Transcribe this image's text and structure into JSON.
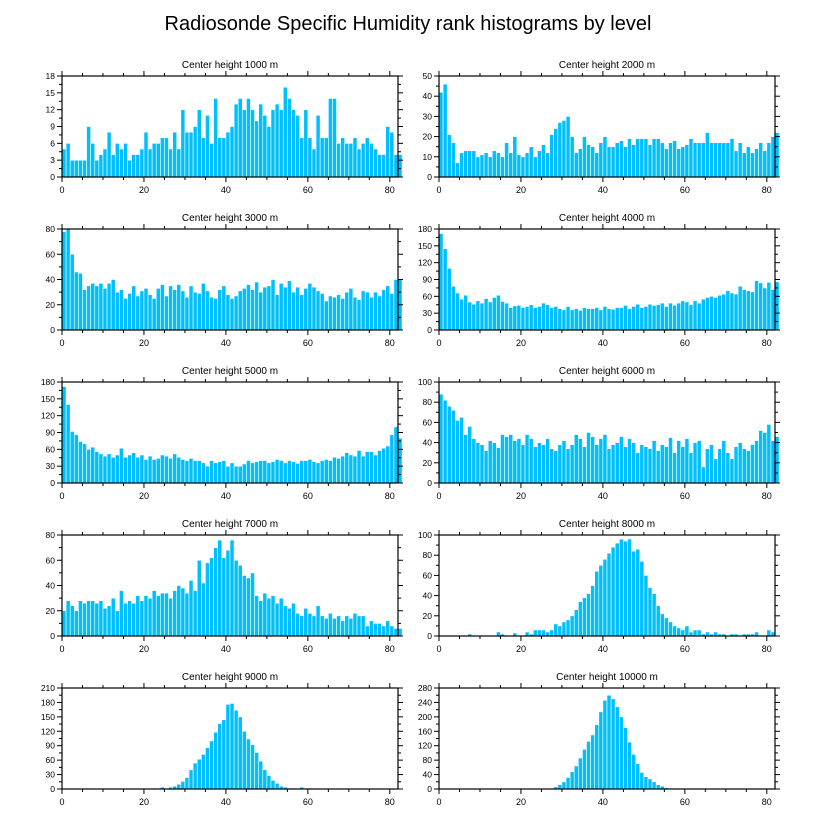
{
  "title": "Radiosonde Specific Humidity rank histograms by level",
  "colors": {
    "bar": "#00BFFF",
    "bar_edge": "#ffffff",
    "axis": "#000000"
  },
  "chart_data": [
    {
      "type": "bar",
      "title": "Center height 1000 m",
      "xlim": [
        0,
        82
      ],
      "ylim": [
        0,
        18
      ],
      "xticks": [
        0,
        20,
        40,
        60,
        80
      ],
      "yticks": [
        0,
        3,
        6,
        9,
        12,
        15,
        18
      ],
      "values": [
        5,
        6,
        3,
        3,
        3,
        3,
        9,
        6,
        3,
        4,
        5,
        8,
        4,
        6,
        5,
        6,
        3,
        4,
        4,
        5,
        8,
        5,
        6,
        6,
        7,
        7,
        5,
        8,
        5,
        12,
        8,
        8,
        9,
        12,
        7,
        11,
        6,
        14,
        7,
        7,
        8,
        9,
        13,
        14,
        12,
        14,
        12,
        10,
        13,
        11,
        9,
        12,
        13,
        12,
        16,
        14,
        12,
        11,
        7,
        12,
        7,
        5,
        11,
        7,
        7,
        14,
        14,
        6,
        7,
        6,
        6,
        7,
        5,
        6,
        7,
        6,
        5,
        4,
        4,
        9,
        8,
        4,
        4
      ]
    },
    {
      "type": "bar",
      "title": "Center height 2000 m",
      "xlim": [
        0,
        82
      ],
      "ylim": [
        0,
        50
      ],
      "xticks": [
        0,
        20,
        40,
        60,
        80
      ],
      "yticks": [
        0,
        10,
        20,
        30,
        40,
        50
      ],
      "values": [
        42,
        46,
        21,
        17,
        7,
        12,
        13,
        13,
        13,
        10,
        11,
        12,
        10,
        13,
        12,
        10,
        17,
        12,
        20,
        11,
        10,
        12,
        15,
        10,
        13,
        16,
        12,
        21,
        24,
        27,
        28,
        30,
        20,
        12,
        14,
        20,
        16,
        15,
        12,
        17,
        20,
        15,
        15,
        17,
        18,
        15,
        19,
        16,
        19,
        19,
        19,
        16,
        19,
        19,
        17,
        14,
        17,
        18,
        14,
        15,
        16,
        19,
        17,
        17,
        17,
        22,
        17,
        17,
        17,
        17,
        17,
        19,
        13,
        17,
        12,
        15,
        12,
        14,
        17,
        13,
        17,
        20,
        22
      ]
    },
    {
      "type": "bar",
      "title": "Center height 3000 m",
      "xlim": [
        0,
        82
      ],
      "ylim": [
        0,
        80
      ],
      "xticks": [
        0,
        20,
        40,
        60,
        80
      ],
      "yticks": [
        0,
        20,
        40,
        60,
        80
      ],
      "values": [
        78,
        80,
        60,
        46,
        45,
        32,
        35,
        37,
        35,
        37,
        33,
        37,
        40,
        30,
        32,
        25,
        29,
        35,
        27,
        31,
        33,
        28,
        25,
        33,
        36,
        27,
        35,
        32,
        36,
        31,
        26,
        35,
        30,
        29,
        37,
        31,
        26,
        25,
        32,
        35,
        28,
        25,
        27,
        31,
        33,
        36,
        32,
        38,
        30,
        34,
        35,
        40,
        28,
        37,
        34,
        39,
        30,
        34,
        28,
        33,
        37,
        34,
        31,
        29,
        23,
        27,
        26,
        28,
        25,
        30,
        33,
        26,
        24,
        31,
        30,
        26,
        30,
        27,
        32,
        35,
        29,
        40,
        40
      ]
    },
    {
      "type": "bar",
      "title": "Center height 4000 m",
      "xlim": [
        0,
        82
      ],
      "ylim": [
        0,
        180
      ],
      "xticks": [
        0,
        20,
        40,
        60,
        80
      ],
      "yticks": [
        0,
        30,
        60,
        90,
        120,
        150,
        180
      ],
      "values": [
        172,
        145,
        110,
        78,
        66,
        55,
        62,
        50,
        46,
        52,
        48,
        56,
        50,
        58,
        62,
        51,
        48,
        40,
        43,
        44,
        40,
        42,
        45,
        40,
        42,
        48,
        45,
        40,
        42,
        38,
        36,
        42,
        36,
        38,
        35,
        40,
        38,
        38,
        40,
        36,
        42,
        38,
        37,
        40,
        40,
        44,
        38,
        42,
        46,
        40,
        42,
        46,
        44,
        45,
        48,
        42,
        48,
        44,
        48,
        52,
        50,
        45,
        52,
        48,
        55,
        58,
        60,
        58,
        62,
        64,
        70,
        66,
        64,
        78,
        72,
        70,
        68,
        88,
        84,
        75,
        85,
        72,
        86
      ]
    },
    {
      "type": "bar",
      "title": "Center height 5000 m",
      "xlim": [
        0,
        82
      ],
      "ylim": [
        0,
        180
      ],
      "xticks": [
        0,
        20,
        40,
        60,
        80
      ],
      "yticks": [
        0,
        30,
        60,
        90,
        120,
        150,
        180
      ],
      "values": [
        172,
        140,
        92,
        86,
        74,
        70,
        60,
        64,
        56,
        52,
        48,
        52,
        46,
        50,
        62,
        46,
        50,
        54,
        46,
        50,
        42,
        48,
        42,
        44,
        50,
        48,
        44,
        52,
        46,
        42,
        40,
        44,
        40,
        40,
        36,
        30,
        40,
        36,
        38,
        40,
        30,
        36,
        30,
        30,
        34,
        40,
        36,
        38,
        40,
        40,
        36,
        38,
        42,
        40,
        36,
        40,
        38,
        35,
        40,
        40,
        42,
        38,
        36,
        40,
        42,
        40,
        46,
        44,
        48,
        54,
        50,
        48,
        58,
        48,
        56,
        56,
        50,
        58,
        62,
        66,
        86,
        100,
        80
      ]
    },
    {
      "type": "bar",
      "title": "Center height 6000 m",
      "xlim": [
        0,
        82
      ],
      "ylim": [
        0,
        100
      ],
      "xticks": [
        0,
        20,
        40,
        60,
        80
      ],
      "yticks": [
        0,
        20,
        40,
        60,
        80,
        100
      ],
      "values": [
        88,
        82,
        76,
        72,
        62,
        65,
        48,
        56,
        44,
        40,
        38,
        32,
        42,
        40,
        35,
        48,
        46,
        48,
        42,
        44,
        38,
        48,
        44,
        36,
        40,
        38,
        44,
        34,
        32,
        38,
        42,
        34,
        38,
        48,
        44,
        36,
        50,
        46,
        38,
        44,
        48,
        34,
        38,
        40,
        46,
        36,
        44,
        40,
        30,
        38,
        36,
        34,
        42,
        32,
        38,
        36,
        45,
        30,
        42,
        36,
        44,
        30,
        40,
        42,
        16,
        34,
        38,
        24,
        34,
        42,
        30,
        24,
        36,
        40,
        34,
        32,
        38,
        42,
        52,
        50,
        58,
        42,
        46
      ]
    },
    {
      "type": "bar",
      "title": "Center height 7000 m",
      "xlim": [
        0,
        82
      ],
      "ylim": [
        0,
        80
      ],
      "xticks": [
        0,
        20,
        40,
        60,
        80
      ],
      "yticks": [
        0,
        20,
        40,
        60,
        80
      ],
      "values": [
        20,
        28,
        24,
        20,
        28,
        26,
        28,
        28,
        26,
        28,
        22,
        24,
        30,
        20,
        36,
        26,
        28,
        26,
        32,
        28,
        32,
        30,
        36,
        32,
        34,
        34,
        30,
        36,
        40,
        38,
        34,
        44,
        36,
        60,
        42,
        58,
        62,
        70,
        76,
        62,
        68,
        76,
        60,
        56,
        48,
        46,
        50,
        32,
        28,
        34,
        30,
        32,
        26,
        30,
        24,
        22,
        26,
        18,
        16,
        22,
        18,
        16,
        24,
        16,
        14,
        18,
        14,
        16,
        12,
        16,
        14,
        18,
        16,
        16,
        8,
        12,
        10,
        10,
        8,
        12,
        8,
        6,
        6
      ]
    },
    {
      "type": "bar",
      "title": "Center height 8000 m",
      "xlim": [
        0,
        82
      ],
      "ylim": [
        0,
        100
      ],
      "xticks": [
        0,
        20,
        40,
        60,
        80
      ],
      "yticks": [
        0,
        20,
        40,
        60,
        80,
        100
      ],
      "values": [
        0,
        0,
        0,
        0,
        0,
        0,
        0,
        2,
        0,
        0,
        0,
        0,
        0,
        0,
        4,
        2,
        0,
        0,
        3,
        0,
        0,
        4,
        2,
        6,
        6,
        6,
        4,
        6,
        12,
        10,
        14,
        16,
        20,
        26,
        34,
        38,
        42,
        50,
        64,
        70,
        76,
        82,
        88,
        92,
        96,
        94,
        96,
        84,
        86,
        74,
        60,
        48,
        42,
        30,
        22,
        18,
        14,
        10,
        8,
        6,
        10,
        4,
        6,
        6,
        2,
        4,
        2,
        4,
        2,
        2,
        0,
        2,
        2,
        0,
        2,
        2,
        2,
        4,
        0,
        0,
        6,
        4,
        0
      ]
    },
    {
      "type": "bar",
      "title": "Center height 9000 m",
      "xlim": [
        0,
        82
      ],
      "ylim": [
        0,
        210
      ],
      "xticks": [
        0,
        20,
        40,
        60,
        80
      ],
      "yticks": [
        0,
        30,
        60,
        90,
        120,
        150,
        180,
        210
      ],
      "values": [
        0,
        0,
        0,
        0,
        0,
        0,
        0,
        0,
        0,
        0,
        0,
        0,
        0,
        0,
        0,
        0,
        0,
        0,
        0,
        0,
        0,
        0,
        2,
        0,
        4,
        0,
        4,
        6,
        10,
        16,
        24,
        40,
        54,
        62,
        72,
        86,
        100,
        118,
        136,
        144,
        176,
        178,
        164,
        150,
        120,
        104,
        92,
        76,
        58,
        40,
        28,
        18,
        12,
        6,
        4,
        2,
        2,
        0,
        4,
        0,
        2,
        0,
        0,
        0,
        0,
        0,
        0,
        0,
        0,
        0,
        0,
        0,
        0,
        0,
        0,
        0,
        0,
        0,
        0,
        0,
        0,
        0,
        0
      ]
    },
    {
      "type": "bar",
      "title": "Center height 10000 m",
      "xlim": [
        0,
        82
      ],
      "ylim": [
        0,
        280
      ],
      "xticks": [
        0,
        20,
        40,
        60,
        80
      ],
      "yticks": [
        0,
        40,
        80,
        120,
        160,
        200,
        240,
        280
      ],
      "values": [
        0,
        0,
        0,
        0,
        0,
        0,
        0,
        0,
        0,
        0,
        0,
        0,
        0,
        0,
        0,
        0,
        0,
        0,
        0,
        0,
        0,
        0,
        0,
        0,
        0,
        0,
        0,
        2,
        6,
        12,
        20,
        32,
        48,
        64,
        86,
        110,
        132,
        150,
        178,
        214,
        246,
        260,
        250,
        228,
        200,
        170,
        130,
        96,
        70,
        46,
        34,
        28,
        20,
        12,
        8,
        4,
        2,
        0,
        0,
        0,
        0,
        0,
        0,
        0,
        0,
        0,
        0,
        0,
        0,
        0,
        0,
        0,
        0,
        0,
        0,
        0,
        0,
        0,
        0,
        0,
        0,
        0,
        0
      ]
    }
  ]
}
